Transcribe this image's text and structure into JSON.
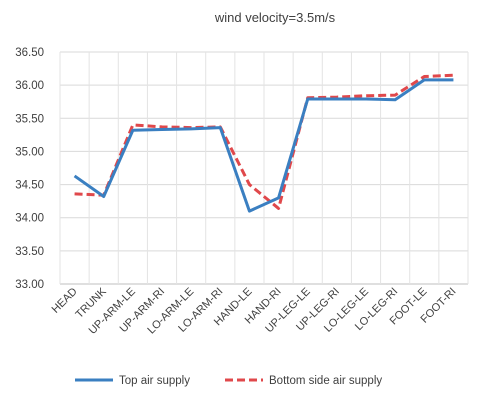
{
  "chart_data": {
    "type": "line",
    "title": "wind velocity=3.5m/s",
    "xlabel": "",
    "ylabel": "",
    "categories": [
      "HEAD",
      "TRUNK",
      "UP-ARM-LE",
      "UP-ARM-RI",
      "LO-ARM-LE",
      "LO-ARM-RI",
      "HAND-LE",
      "HAND-RI",
      "UP-LEG-LE",
      "UP-LEG-RI",
      "LO-LEG-LE",
      "LO-LEG-RI",
      "FOOT-LE",
      "FOOT-RI"
    ],
    "ylim": [
      33.0,
      36.5
    ],
    "yticks": [
      "33.00",
      "33.50",
      "34.00",
      "34.50",
      "35.00",
      "35.50",
      "36.00",
      "36.50"
    ],
    "grid": true,
    "legend_position": "bottom",
    "series": [
      {
        "name": "Top air supply",
        "color": "#3a7fc1",
        "dash": "solid",
        "values": [
          34.63,
          34.32,
          35.32,
          35.33,
          35.34,
          35.36,
          34.1,
          34.3,
          35.79,
          35.79,
          35.79,
          35.78,
          36.08,
          36.08
        ]
      },
      {
        "name": "Bottom side air supply",
        "color": "#e0484b",
        "dash": "dashed",
        "values": [
          34.36,
          34.34,
          35.4,
          35.37,
          35.36,
          35.37,
          34.5,
          34.14,
          35.81,
          35.82,
          35.84,
          35.85,
          36.13,
          36.15
        ]
      }
    ]
  }
}
